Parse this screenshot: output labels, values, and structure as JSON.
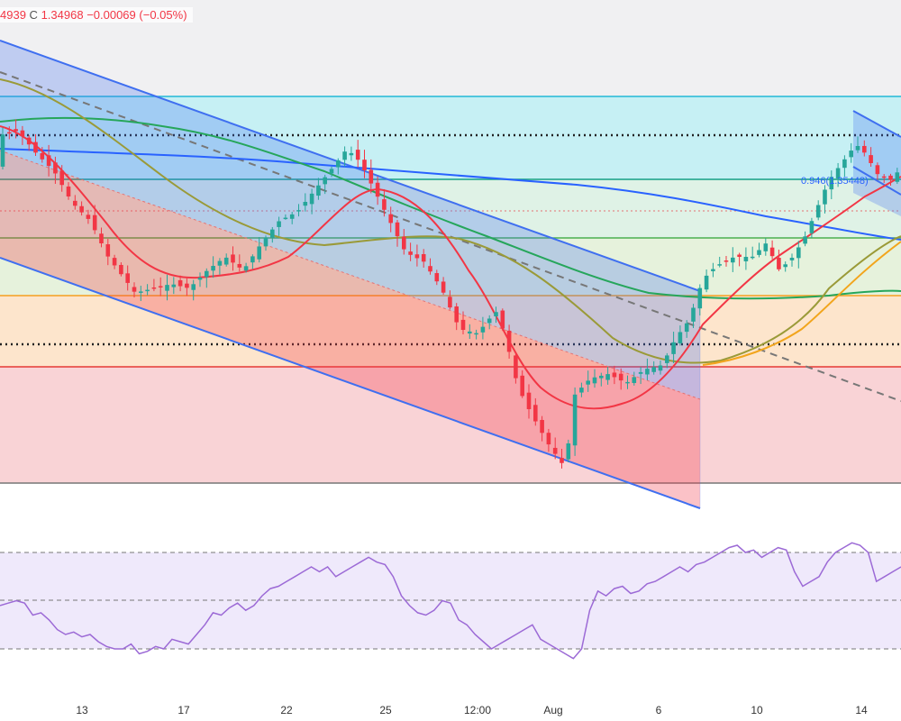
{
  "legend": {
    "prev_close_fragment": "4939",
    "close_label": "C",
    "close_value": "1.34968",
    "change": "−0.00069",
    "change_pct": "(−0.05%)"
  },
  "fib_label": "0.946(1.35448)",
  "colors": {
    "bull": "#26a69a",
    "bear": "#f23645",
    "channel": "#3f6ff0",
    "ema_short": "#f23645",
    "ema_mid": "#8b8b2a",
    "ema_long": "#2962ff",
    "ema_green": "#26a65b",
    "rsi": "#9c6ad6"
  },
  "chart_data": {
    "type": "candlestick",
    "x_ticks": [
      "13",
      "17",
      "22",
      "25",
      "12:00",
      "Aug",
      "6",
      "10",
      "14"
    ],
    "rsi_levels": [
      70,
      50,
      30
    ],
    "rsi_values": [
      48,
      49,
      50,
      49,
      44,
      45,
      42,
      38,
      36,
      37,
      35,
      36,
      33,
      31,
      30,
      30,
      32,
      28,
      29,
      31,
      30,
      34,
      33,
      32,
      36,
      40,
      45,
      44,
      47,
      49,
      46,
      48,
      52,
      55,
      56,
      58,
      60,
      62,
      64,
      62,
      64,
      60,
      62,
      64,
      66,
      68,
      66,
      65,
      60,
      52,
      48,
      45,
      44,
      46,
      50,
      49,
      42,
      40,
      36,
      33,
      30,
      32,
      34,
      36,
      38,
      40,
      34,
      32,
      30,
      28,
      26,
      30,
      46,
      54,
      52,
      55,
      56,
      53,
      54,
      57,
      58,
      60,
      62,
      64,
      62,
      65,
      66,
      68,
      70,
      72,
      73,
      70,
      71,
      68,
      70,
      72,
      71,
      62,
      56,
      58,
      60,
      66,
      70,
      72,
      74,
      73,
      70,
      58,
      60,
      62,
      64
    ]
  }
}
